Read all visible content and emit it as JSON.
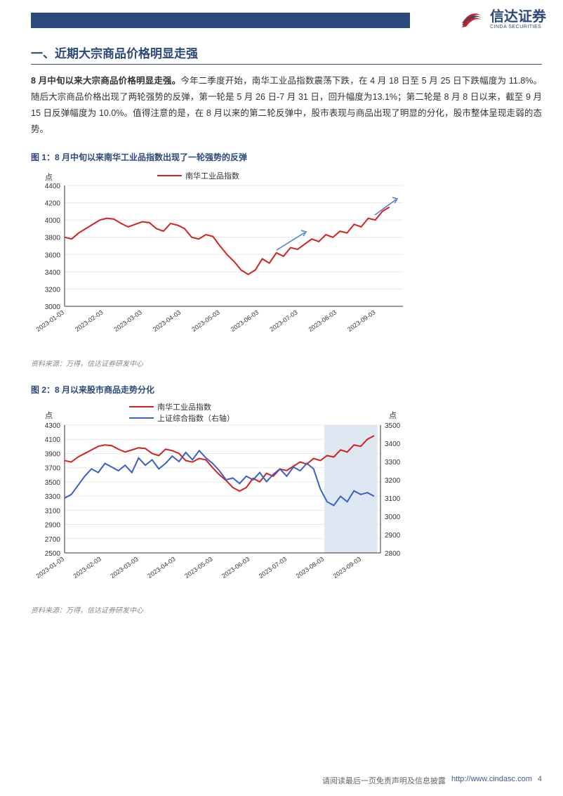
{
  "header": {
    "brand_cn": "信达证券",
    "brand_en": "CINDA SECURITIES"
  },
  "section1": {
    "heading": "一、近期大宗商品价格明显走强",
    "body_bold": "8 月中旬以来大宗商品价格明显走强。",
    "body_rest": "今年二季度开始，南华工业品指数震荡下跌，在 4 月 18 日至 5 月 25 日下跌幅度为 11.8%。随后大宗商品价格出现了两轮强势的反弹，第一轮是 5 月 26 日-7 月 31 日，回升幅度为13.1%；第二轮是 8 月 8 日以来，截至 9 月 15 日反弹幅度为 10.0%。值得注意的是，在 8 月以来的第二轮反弹中，股市表现与商品出现了明显的分化，股市整体呈现走弱的态势。"
  },
  "figure1": {
    "title": "图 1：8 月中旬以来南华工业品指数出现了一轮强势的反弹",
    "legend": [
      "南华工业品指数"
    ],
    "y_label_unit": "点",
    "y_ticks": [
      3000,
      3200,
      3400,
      3600,
      3800,
      4000,
      4200,
      4400
    ],
    "x_ticks": [
      "2023-01-03",
      "2023-02-03",
      "2023-03-03",
      "2023-04-03",
      "2023-05-03",
      "2023-06-03",
      "2023-07-03",
      "2023-08-03",
      "2023-09-03"
    ],
    "series1_color": "#d3211f",
    "series1_width": 2,
    "arrow_color": "#4a80c7",
    "grid_color": "#e8e8e8",
    "axis_color": "#333333",
    "background_color": "#ffffff",
    "data_points": [
      3800,
      3780,
      3850,
      3900,
      3950,
      4000,
      4020,
      4010,
      3960,
      3920,
      3950,
      3980,
      3970,
      3900,
      3870,
      3960,
      3940,
      3900,
      3800,
      3780,
      3830,
      3810,
      3700,
      3600,
      3520,
      3420,
      3370,
      3420,
      3550,
      3500,
      3620,
      3580,
      3680,
      3660,
      3720,
      3780,
      3750,
      3830,
      3800,
      3870,
      3850,
      3950,
      3920,
      4020,
      4000,
      4100,
      4150
    ]
  },
  "figure2": {
    "title": "图 2：8 月以来股市商品走势分化",
    "legend": [
      "南华工业品指数",
      "上证综合指数（右轴）"
    ],
    "y_label_unit_left": "点",
    "y_label_unit_right": "点",
    "y_ticks_left": [
      2500,
      2700,
      2900,
      3100,
      3300,
      3500,
      3700,
      3900,
      4100,
      4300
    ],
    "y_ticks_right": [
      2800,
      2900,
      3000,
      3100,
      3200,
      3300,
      3400,
      3500
    ],
    "x_ticks": [
      "2023-01-03",
      "2023-02-03",
      "2023-03-03",
      "2023-04-03",
      "2023-05-03",
      "2023-06-03",
      "2023-07-03",
      "2023-08-03",
      "2023-09-03"
    ],
    "series1_color": "#d3211f",
    "series2_color": "#3a60c8",
    "series1_width": 2,
    "series2_width": 2,
    "highlight_box_color": "#dce7f2",
    "grid_color": "#e8e8e8",
    "axis_color": "#333333",
    "background_color": "#ffffff",
    "series1_data": [
      3800,
      3780,
      3850,
      3900,
      3950,
      4000,
      4020,
      4010,
      3960,
      3920,
      3950,
      3980,
      3970,
      3900,
      3870,
      3960,
      3940,
      3900,
      3800,
      3780,
      3830,
      3810,
      3700,
      3600,
      3520,
      3420,
      3370,
      3420,
      3550,
      3500,
      3620,
      3580,
      3680,
      3660,
      3720,
      3780,
      3750,
      3830,
      3800,
      3870,
      3850,
      3950,
      3920,
      4020,
      4000,
      4100,
      4150
    ],
    "series2_data": [
      3100,
      3120,
      3170,
      3220,
      3260,
      3240,
      3290,
      3270,
      3250,
      3280,
      3240,
      3320,
      3280,
      3310,
      3260,
      3290,
      3330,
      3300,
      3350,
      3310,
      3360,
      3320,
      3290,
      3250,
      3200,
      3210,
      3180,
      3220,
      3200,
      3240,
      3190,
      3230,
      3260,
      3220,
      3270,
      3250,
      3290,
      3260,
      3150,
      3080,
      3060,
      3110,
      3080,
      3140,
      3120,
      3130,
      3110
    ]
  },
  "source_text": "资料来源：万得，信达证券研发中心",
  "footer": {
    "disclaimer": "请阅读最后一页免责声明及信息披露",
    "url": "http://www.cindasc.com",
    "page_num": "4"
  },
  "colors": {
    "header_bar": "#2b4a7a",
    "section_title": "#2b4a7a"
  }
}
